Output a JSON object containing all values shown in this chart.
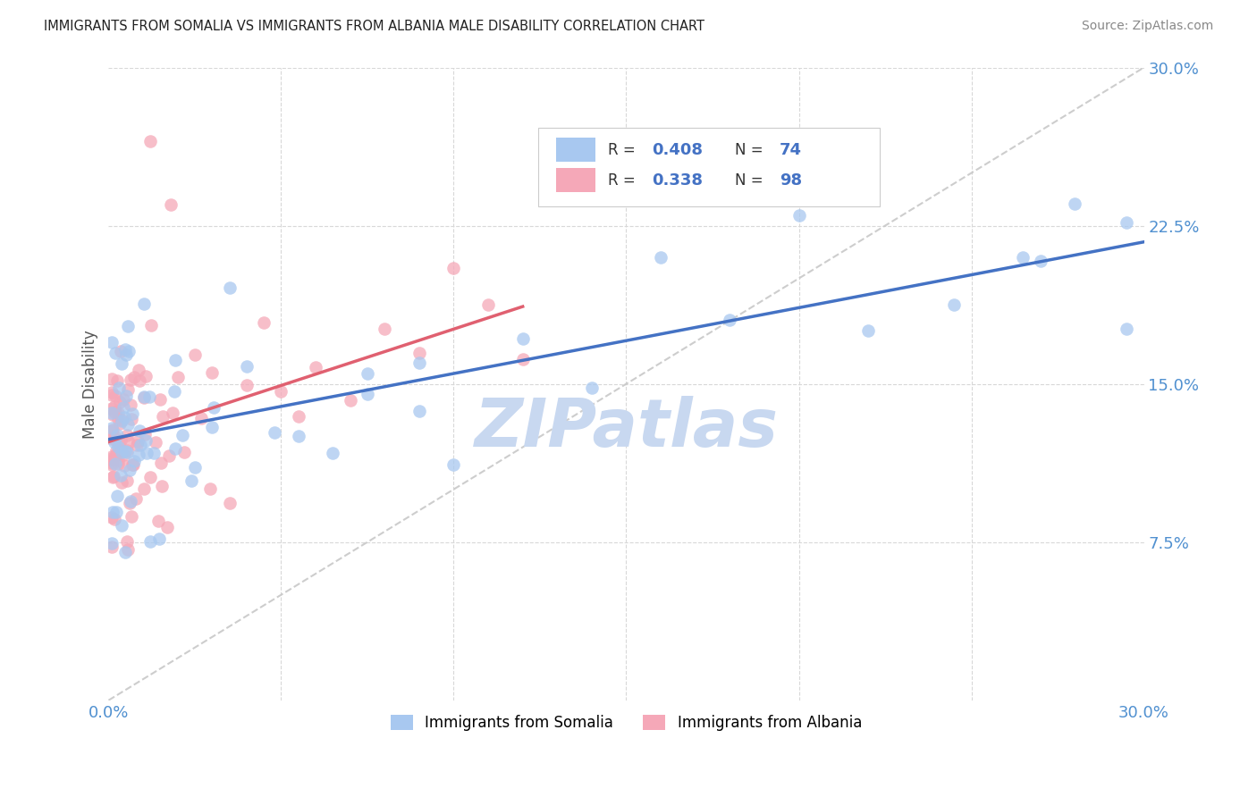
{
  "title": "IMMIGRANTS FROM SOMALIA VS IMMIGRANTS FROM ALBANIA MALE DISABILITY CORRELATION CHART",
  "source": "Source: ZipAtlas.com",
  "ylabel": "Male Disability",
  "xlim": [
    0,
    0.3
  ],
  "ylim": [
    0,
    0.3
  ],
  "somalia_R": 0.408,
  "somalia_N": 74,
  "albania_R": 0.338,
  "albania_N": 98,
  "somalia_color": "#a8c8f0",
  "albania_color": "#f5a8b8",
  "somalia_line_color": "#4472c4",
  "albania_line_color": "#e06070",
  "ref_line_color": "#c8c8c8",
  "watermark_text": "ZIPatlas",
  "watermark_color": "#c8d8f0",
  "background_color": "#ffffff",
  "grid_color": "#d8d8d8",
  "legend_somalia_color": "#a8c8f0",
  "legend_albania_color": "#f5a8b8",
  "legend_text_color": "#4472c4",
  "legend_label_color": "#333333",
  "title_color": "#222222",
  "source_color": "#888888",
  "axis_tick_color": "#5090d0"
}
